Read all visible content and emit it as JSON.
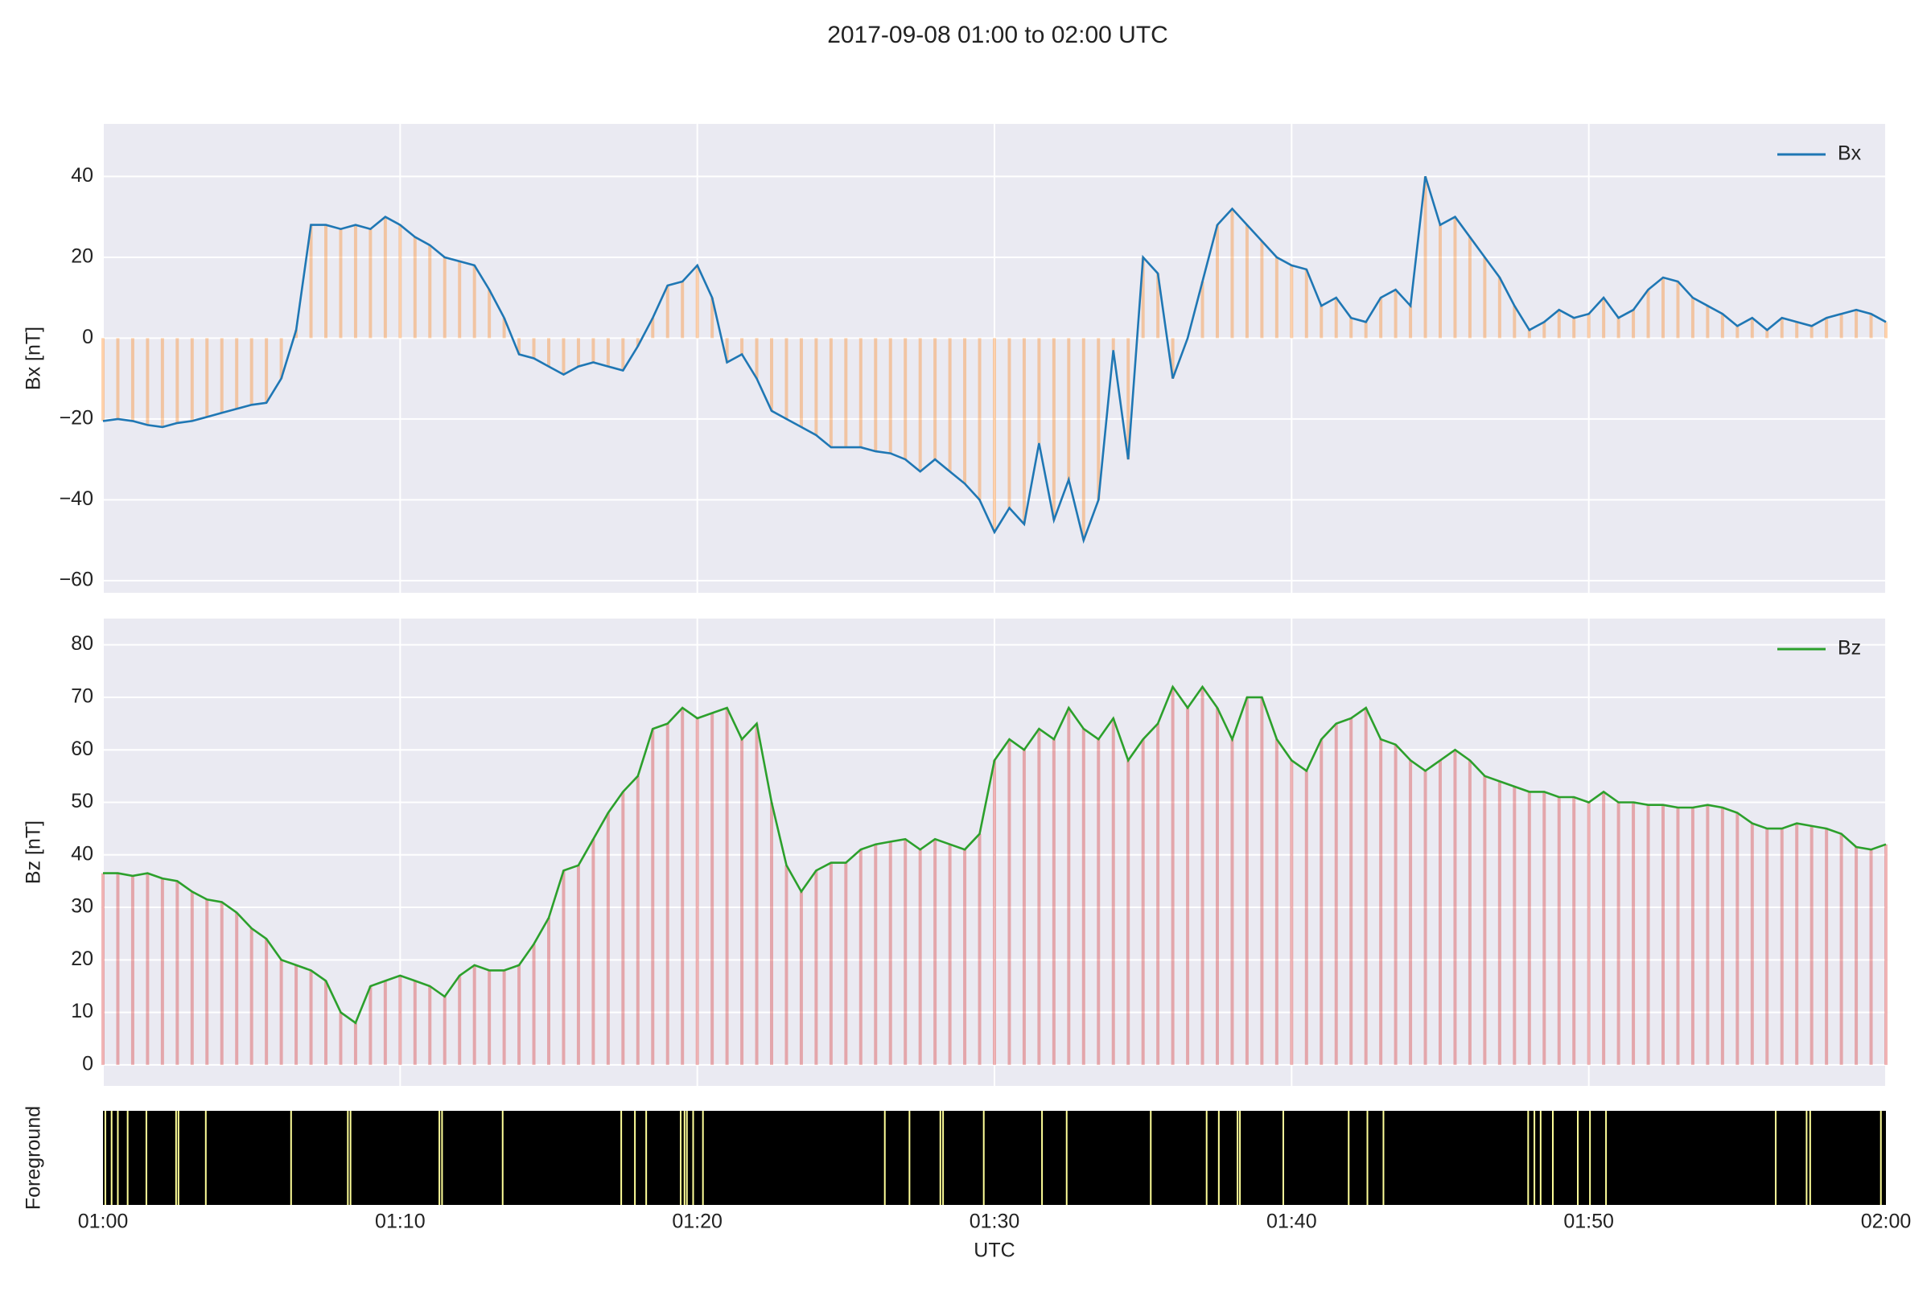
{
  "title": "2017-09-08 01:00 to 02:00 UTC",
  "chart_data": [
    {
      "type": "line",
      "ylabel": "Bx [nT]",
      "legend": "upper right",
      "grid": true,
      "background": "#eaeaf2",
      "xlim": [
        0,
        60
      ],
      "xticks": [
        0,
        10,
        20,
        30,
        40,
        50,
        60
      ],
      "ylim": [
        -63,
        53
      ],
      "yticks": [
        {
          "value": -60,
          "label": "−60"
        },
        {
          "value": -40,
          "label": "−40"
        },
        {
          "value": -20,
          "label": "−20"
        },
        0,
        20,
        40
      ],
      "x": [
        0,
        0.5,
        1,
        1.5,
        2,
        2.5,
        3,
        3.5,
        4,
        4.5,
        5,
        5.5,
        6,
        6.5,
        7,
        7.5,
        8,
        8.5,
        9,
        9.5,
        10,
        10.5,
        11,
        11.5,
        12,
        12.5,
        13,
        13.5,
        14,
        14.5,
        15,
        15.5,
        16,
        16.5,
        17,
        17.5,
        18,
        18.5,
        19,
        19.5,
        20,
        20.5,
        21,
        21.5,
        22,
        22.5,
        23,
        23.5,
        24,
        24.5,
        25,
        25.5,
        26,
        26.5,
        27,
        27.5,
        28,
        28.5,
        29,
        29.5,
        30,
        30.5,
        31,
        31.5,
        32,
        32.5,
        33,
        33.5,
        34,
        34.5,
        35,
        35.5,
        36,
        36.5,
        37,
        37.5,
        38,
        38.5,
        39,
        39.5,
        40,
        40.5,
        41,
        41.5,
        42,
        42.5,
        43,
        43.5,
        44,
        44.5,
        45,
        45.5,
        46,
        46.5,
        47,
        47.5,
        48,
        48.5,
        49,
        49.5,
        50,
        50.5,
        51,
        51.5,
        52,
        52.5,
        53,
        53.5,
        54,
        54.5,
        55,
        55.5,
        56,
        56.5,
        57,
        57.5,
        58,
        58.5,
        59,
        59.5,
        60
      ],
      "series": [
        {
          "name": "Bx",
          "color": "#1f77b4",
          "fill_color": "#ff7f0e",
          "values": [
            -20.5,
            -20,
            -20.5,
            -21.5,
            -22,
            -21,
            -20.5,
            -19.5,
            -18.5,
            -17.5,
            -16.5,
            -16,
            -10,
            2,
            28,
            28,
            27,
            28,
            27,
            30,
            28,
            25,
            23,
            20,
            19,
            18,
            12,
            5,
            -4,
            -5,
            -7,
            -9,
            -7,
            -6,
            -7,
            -8,
            -2,
            5,
            13,
            14,
            18,
            10,
            -6,
            -4,
            -10,
            -18,
            -20,
            -22,
            -24,
            -27,
            -27,
            -27,
            -28,
            -28.5,
            -30,
            -33,
            -30,
            -33,
            -36,
            -40,
            -48,
            -42,
            -46,
            -26,
            -45,
            -35,
            -50,
            -40,
            -3,
            -30,
            20,
            16,
            -10,
            0,
            14,
            28,
            32,
            28,
            24,
            20,
            18,
            17,
            8,
            10,
            5,
            4,
            10,
            12,
            8,
            40,
            28,
            30,
            25,
            20,
            15,
            8,
            2,
            4,
            7,
            5,
            6,
            10,
            5,
            7,
            12,
            15,
            14,
            10,
            8,
            6,
            3,
            5,
            2,
            5,
            4,
            3,
            5,
            6,
            7,
            6,
            4
          ]
        }
      ]
    },
    {
      "type": "line",
      "ylabel": "Bz [nT]",
      "legend": "upper right",
      "grid": true,
      "background": "#eaeaf2",
      "xlim": [
        0,
        60
      ],
      "xticks": [
        0,
        10,
        20,
        30,
        40,
        50,
        60
      ],
      "ylim": [
        -4,
        85
      ],
      "yticks": [
        0,
        10,
        20,
        30,
        40,
        50,
        60,
        70,
        80
      ],
      "x": [
        0,
        0.5,
        1,
        1.5,
        2,
        2.5,
        3,
        3.5,
        4,
        4.5,
        5,
        5.5,
        6,
        6.5,
        7,
        7.5,
        8,
        8.5,
        9,
        9.5,
        10,
        10.5,
        11,
        11.5,
        12,
        12.5,
        13,
        13.5,
        14,
        14.5,
        15,
        15.5,
        16,
        16.5,
        17,
        17.5,
        18,
        18.5,
        19,
        19.5,
        20,
        20.5,
        21,
        21.5,
        22,
        22.5,
        23,
        23.5,
        24,
        24.5,
        25,
        25.5,
        26,
        26.5,
        27,
        27.5,
        28,
        28.5,
        29,
        29.5,
        30,
        30.5,
        31,
        31.5,
        32,
        32.5,
        33,
        33.5,
        34,
        34.5,
        35,
        35.5,
        36,
        36.5,
        37,
        37.5,
        38,
        38.5,
        39,
        39.5,
        40,
        40.5,
        41,
        41.5,
        42,
        42.5,
        43,
        43.5,
        44,
        44.5,
        45,
        45.5,
        46,
        46.5,
        47,
        47.5,
        48,
        48.5,
        49,
        49.5,
        50,
        50.5,
        51,
        51.5,
        52,
        52.5,
        53,
        53.5,
        54,
        54.5,
        55,
        55.5,
        56,
        56.5,
        57,
        57.5,
        58,
        58.5,
        59,
        59.5,
        60
      ],
      "series": [
        {
          "name": "Bz",
          "color": "#2ca02c",
          "fill_color": "#d62728",
          "values": [
            36.5,
            36.5,
            36,
            36.5,
            35.5,
            35,
            33,
            31.5,
            31,
            29,
            26,
            24,
            20,
            19,
            18,
            16,
            10,
            8,
            15,
            16,
            17,
            16,
            15,
            13,
            17,
            19,
            18,
            18,
            19,
            23,
            28,
            37,
            38,
            43,
            48,
            52,
            55,
            64,
            65,
            68,
            66,
            67,
            68,
            62,
            65,
            50,
            38,
            33,
            37,
            38.5,
            38.5,
            41,
            42,
            42.5,
            43,
            41,
            43,
            42,
            41,
            44,
            58,
            62,
            60,
            64,
            62,
            68,
            64,
            62,
            66,
            58,
            62,
            65,
            72,
            68,
            72,
            68,
            62,
            70,
            70,
            62,
            58,
            56,
            62,
            65,
            66,
            68,
            62,
            61,
            58,
            56,
            58,
            60,
            58,
            55,
            54,
            53,
            52,
            52,
            51,
            51,
            50,
            52,
            50,
            50,
            49.5,
            49.5,
            49,
            49,
            49.5,
            49,
            48,
            46,
            45,
            45,
            46,
            45.5,
            45,
            44,
            41.5,
            41,
            42
          ]
        }
      ]
    },
    {
      "type": "events",
      "ylabel": "Foreground",
      "xlabel": "UTC",
      "background": "#000000",
      "color": "#ffff99",
      "xlim": [
        0,
        60
      ],
      "xticks": [
        {
          "value": 0,
          "label": "01:00"
        },
        {
          "value": 10,
          "label": "01:10"
        },
        {
          "value": 20,
          "label": "01:20"
        },
        {
          "value": 30,
          "label": "01:30"
        },
        {
          "value": 40,
          "label": "01:40"
        },
        {
          "value": 50,
          "label": "01:50"
        },
        {
          "value": 60,
          "label": "02:00"
        }
      ],
      "x": [
        0.08,
        0.29,
        0.5,
        0.83,
        1.46,
        2.46,
        2.54,
        3.46,
        6.33,
        8.24,
        8.33,
        11.32,
        11.41,
        13.45,
        17.44,
        17.9,
        18.28,
        19.44,
        19.57,
        19.65,
        19.86,
        20.19,
        26.31,
        27.14,
        28.18,
        28.27,
        29.64,
        31.6,
        32.43,
        35.26,
        37.14,
        37.55,
        38.18,
        38.26,
        39.72,
        41.92,
        42.55,
        43.09,
        47.96,
        48.17,
        48.38,
        48.79,
        49.63,
        50.04,
        50.58,
        56.29,
        57.33,
        57.45,
        59.83
      ]
    }
  ]
}
